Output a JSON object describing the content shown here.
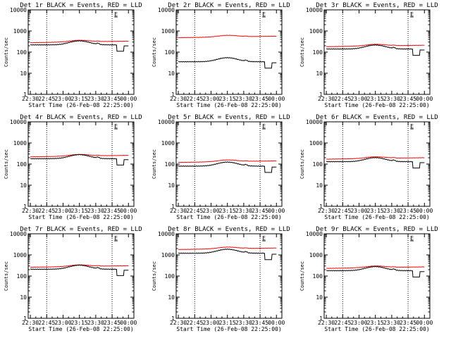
{
  "chart_data": {
    "type": "line",
    "layout": "3x3 grid of panels",
    "x_ticks": [
      "22:30",
      "22:45",
      "23:00",
      "23:15",
      "23:30",
      "23:45",
      "00:00"
    ],
    "xlabel": "Start Time (26-Feb-08 22:25:00)",
    "ylabel": "Counts/sec",
    "yscale": "log",
    "ylim": [
      1,
      10000
    ],
    "y_ticks": [
      "1",
      "10",
      "100",
      "1000",
      "10000"
    ],
    "marker_label": "E",
    "legend": "",
    "grid": false,
    "series_colors": {
      "Events": "#000000",
      "LLD": "#ff0000"
    },
    "panels": [
      {
        "title": "Det 1r BLACK = Events, RED = LLD",
        "events_level": 220,
        "lld_level": 280
      },
      {
        "title": "Det 2r BLACK = Events, RED = LLD",
        "events_level": 35,
        "lld_level": 480
      },
      {
        "title": "Det 3r BLACK = Events, RED = LLD",
        "events_level": 140,
        "lld_level": 180
      },
      {
        "title": "Det 4r BLACK = Events, RED = LLD",
        "events_level": 180,
        "lld_level": 220
      },
      {
        "title": "Det 5r BLACK = Events, RED = LLD",
        "events_level": 80,
        "lld_level": 120
      },
      {
        "title": "Det 6r BLACK = Events, RED = LLD",
        "events_level": 130,
        "lld_level": 170
      },
      {
        "title": "Det 7r BLACK = Events, RED = LLD",
        "events_level": 210,
        "lld_level": 260
      },
      {
        "title": "Det 8r BLACK = Events, RED = LLD",
        "events_level": 1200,
        "lld_level": 1800
      },
      {
        "title": "Det 9r BLACK = Events, RED = LLD",
        "events_level": 180,
        "lld_level": 230
      }
    ]
  }
}
